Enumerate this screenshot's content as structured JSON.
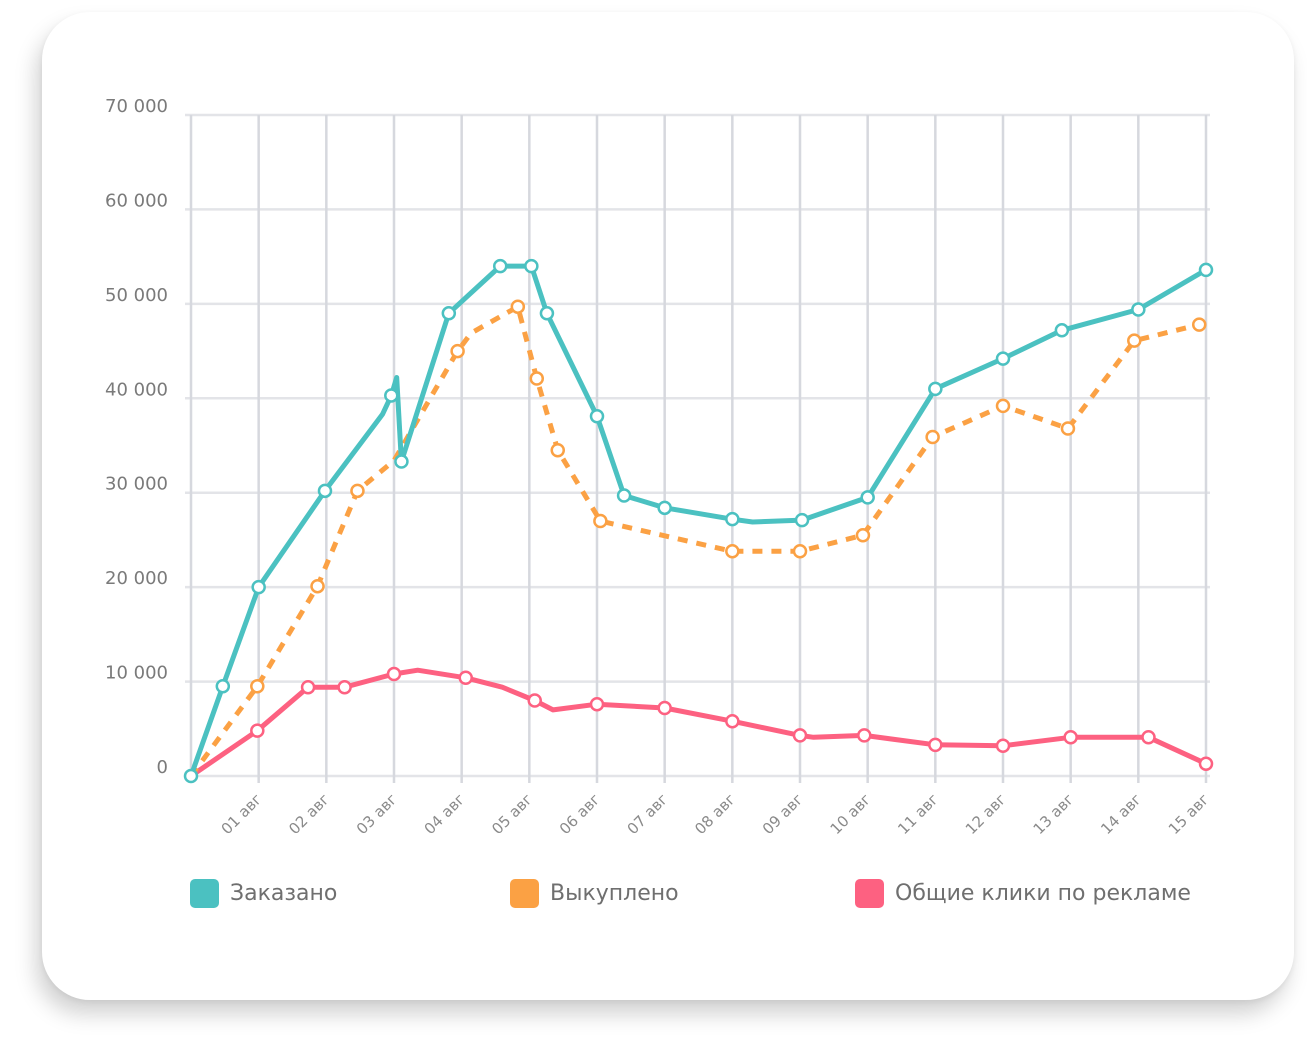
{
  "chart_data": {
    "type": "line",
    "y_tick_labels": [
      "0",
      "10 000",
      "20 000",
      "30 000",
      "40 000",
      "50 000",
      "60 000",
      "70 000"
    ],
    "x_tick_labels": [
      "01 авг",
      "02 авг",
      "03 авг",
      "04 авг",
      "05 авг",
      "06 авг",
      "07 авг",
      "08 авг",
      "09 авг",
      "10 авг",
      "11 авг",
      "12 авг",
      "13 авг",
      "14 авг",
      "15 авг"
    ],
    "ylim": [
      0,
      70000
    ],
    "xlim": [
      0,
      15
    ],
    "grid": true,
    "legend_position": "bottom",
    "series": [
      {
        "name": "Заказано",
        "color": "#4bc1c1",
        "style": "solid",
        "points": [
          {
            "x": 0,
            "y": 0,
            "marker": true
          },
          {
            "x": 0.47,
            "y": 9500,
            "marker": true
          },
          {
            "x": 1.0,
            "y": 20000,
            "marker": true
          },
          {
            "x": 1.98,
            "y": 30200,
            "marker": true
          },
          {
            "x": 2.83,
            "y": 38300,
            "marker": false
          },
          {
            "x": 2.96,
            "y": 40300,
            "marker": true
          },
          {
            "x": 3.04,
            "y": 42200,
            "marker": false
          },
          {
            "x": 3.11,
            "y": 33300,
            "marker": true
          },
          {
            "x": 3.81,
            "y": 49000,
            "marker": true
          },
          {
            "x": 4.57,
            "y": 54000,
            "marker": true
          },
          {
            "x": 5.03,
            "y": 54000,
            "marker": true
          },
          {
            "x": 5.26,
            "y": 49000,
            "marker": true
          },
          {
            "x": 6.0,
            "y": 38100,
            "marker": true
          },
          {
            "x": 6.4,
            "y": 29700,
            "marker": true
          },
          {
            "x": 7.0,
            "y": 28400,
            "marker": true
          },
          {
            "x": 8.0,
            "y": 27200,
            "marker": true
          },
          {
            "x": 8.3,
            "y": 26900,
            "marker": false
          },
          {
            "x": 9.03,
            "y": 27100,
            "marker": true
          },
          {
            "x": 10.0,
            "y": 29500,
            "marker": true
          },
          {
            "x": 11.0,
            "y": 41000,
            "marker": true
          },
          {
            "x": 12.0,
            "y": 44200,
            "marker": true
          },
          {
            "x": 12.87,
            "y": 47200,
            "marker": true
          },
          {
            "x": 14.0,
            "y": 49400,
            "marker": true
          },
          {
            "x": 15.0,
            "y": 53600,
            "marker": true
          }
        ]
      },
      {
        "name": "Выкуплено",
        "color": "#fba144",
        "style": "dashed",
        "points": [
          {
            "x": 0,
            "y": 0,
            "marker": false
          },
          {
            "x": 0.98,
            "y": 9500,
            "marker": true
          },
          {
            "x": 1.87,
            "y": 20100,
            "marker": true
          },
          {
            "x": 2.46,
            "y": 30200,
            "marker": true
          },
          {
            "x": 3.0,
            "y": 33400,
            "marker": false
          },
          {
            "x": 3.94,
            "y": 45000,
            "marker": true
          },
          {
            "x": 4.14,
            "y": 46900,
            "marker": false
          },
          {
            "x": 4.83,
            "y": 49700,
            "marker": true
          },
          {
            "x": 5.11,
            "y": 42100,
            "marker": true
          },
          {
            "x": 5.42,
            "y": 34500,
            "marker": true
          },
          {
            "x": 6.05,
            "y": 27000,
            "marker": true
          },
          {
            "x": 8.0,
            "y": 23800,
            "marker": true
          },
          {
            "x": 9.0,
            "y": 23800,
            "marker": true
          },
          {
            "x": 9.93,
            "y": 25500,
            "marker": true
          },
          {
            "x": 10.96,
            "y": 35900,
            "marker": true
          },
          {
            "x": 12.0,
            "y": 39200,
            "marker": true
          },
          {
            "x": 12.96,
            "y": 36800,
            "marker": true
          },
          {
            "x": 13.94,
            "y": 46100,
            "marker": true
          },
          {
            "x": 14.9,
            "y": 47800,
            "marker": true
          }
        ]
      },
      {
        "name": "Общие клики по рекламе",
        "color": "#fd6181",
        "style": "solid",
        "points": [
          {
            "x": 0,
            "y": 0,
            "marker": false
          },
          {
            "x": 0.98,
            "y": 4800,
            "marker": true
          },
          {
            "x": 1.73,
            "y": 9400,
            "marker": true
          },
          {
            "x": 2.27,
            "y": 9400,
            "marker": true
          },
          {
            "x": 3.0,
            "y": 10800,
            "marker": true
          },
          {
            "x": 3.35,
            "y": 11200,
            "marker": false
          },
          {
            "x": 4.06,
            "y": 10400,
            "marker": true
          },
          {
            "x": 4.6,
            "y": 9400,
            "marker": false
          },
          {
            "x": 5.08,
            "y": 8000,
            "marker": true
          },
          {
            "x": 5.35,
            "y": 7000,
            "marker": false
          },
          {
            "x": 6.0,
            "y": 7600,
            "marker": true
          },
          {
            "x": 7.0,
            "y": 7200,
            "marker": true
          },
          {
            "x": 8.0,
            "y": 5800,
            "marker": true
          },
          {
            "x": 9.0,
            "y": 4300,
            "marker": true
          },
          {
            "x": 9.2,
            "y": 4100,
            "marker": false
          },
          {
            "x": 9.95,
            "y": 4300,
            "marker": true
          },
          {
            "x": 11.0,
            "y": 3300,
            "marker": true
          },
          {
            "x": 12.0,
            "y": 3200,
            "marker": true
          },
          {
            "x": 13.0,
            "y": 4100,
            "marker": true
          },
          {
            "x": 13.15,
            "y": 4100,
            "marker": false
          },
          {
            "x": 14.15,
            "y": 4100,
            "marker": true
          },
          {
            "x": 15.0,
            "y": 1300,
            "marker": true
          }
        ]
      }
    ]
  },
  "legend": [
    {
      "label": "Заказано",
      "color": "#4bc1c1"
    },
    {
      "label": "Выкуплено",
      "color": "#fba144"
    },
    {
      "label": "Общие клики по рекламе",
      "color": "#fd6181"
    }
  ]
}
